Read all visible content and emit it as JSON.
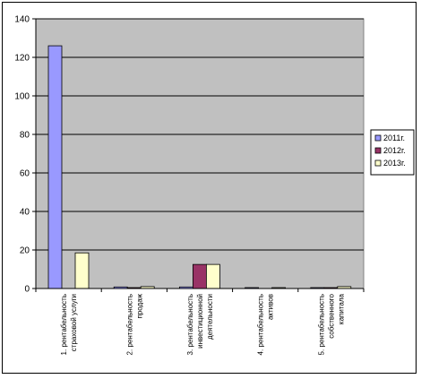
{
  "chart_data": {
    "type": "bar",
    "categories": [
      [
        "1. рентабельность",
        "страховой услуги"
      ],
      [
        "2. рентабельность",
        "продаж"
      ],
      [
        "3. рентабельность",
        "инвестиционной",
        "деятельности"
      ],
      [
        "4. рентабельность",
        "активов"
      ],
      [
        "5. рентабельность",
        "собственного",
        "капитала"
      ]
    ],
    "series": [
      {
        "name": "2011г.",
        "color": "#9999ff",
        "values": [
          126,
          0.8,
          0.8,
          0.3,
          0.3
        ]
      },
      {
        "name": "2012г.",
        "color": "#993366",
        "values": [
          0,
          0.3,
          12.5,
          0,
          0.3
        ]
      },
      {
        "name": "2013г.",
        "color": "#ffffcc",
        "values": [
          18.5,
          1,
          12.5,
          0.3,
          1
        ]
      }
    ],
    "ylim": [
      0,
      140
    ],
    "yticks": [
      0,
      20,
      40,
      60,
      80,
      100,
      120,
      140
    ],
    "grid": true,
    "legend": "right",
    "plot_background": "#c0c0c0"
  }
}
